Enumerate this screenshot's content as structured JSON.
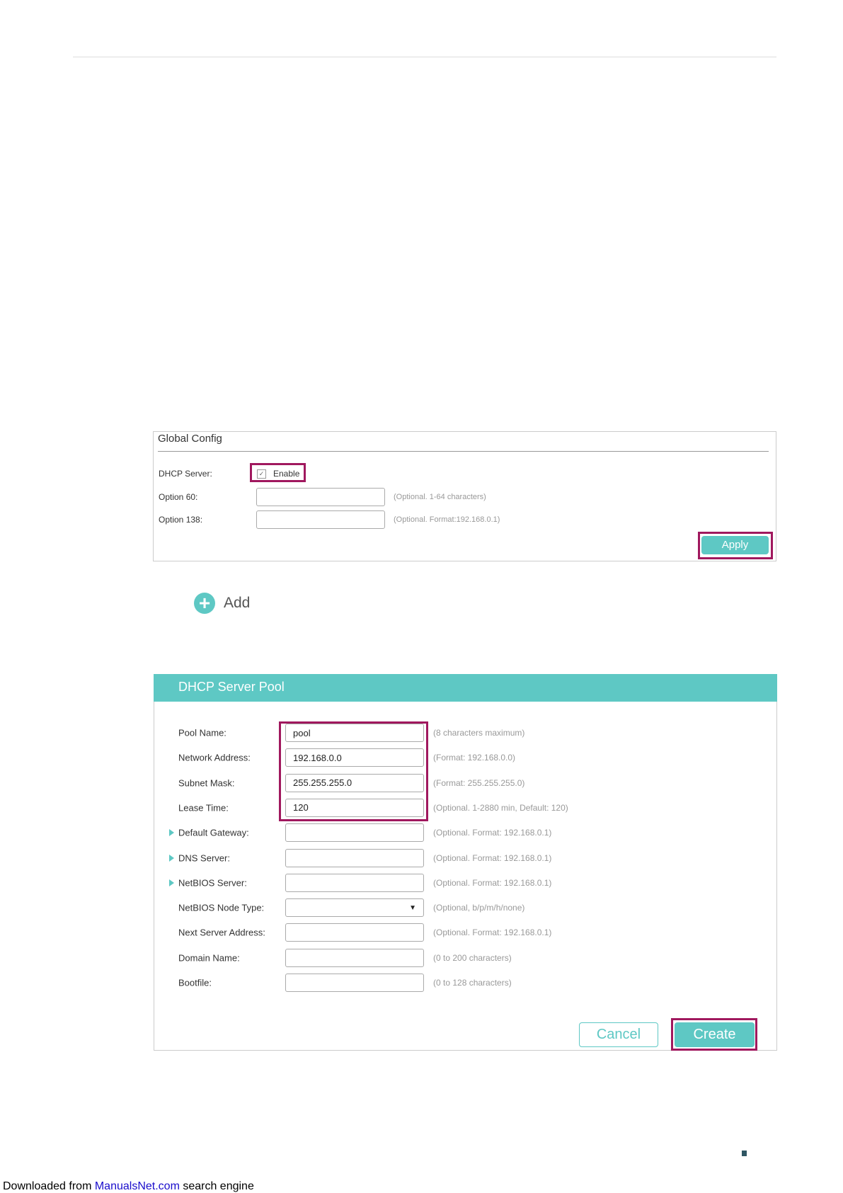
{
  "global_config": {
    "title": "Global Config",
    "dhcp_server_label": "DHCP Server:",
    "enable_label": "Enable",
    "enable_checked": true,
    "option60_label": "Option 60:",
    "option60_value": "",
    "option60_hint": "(Optional. 1-64 characters)",
    "option138_label": "Option 138:",
    "option138_value": "",
    "option138_hint": "(Optional. Format:192.168.0.1)",
    "apply_label": "Apply"
  },
  "add": {
    "label": "Add",
    "icon": "plus-circle-icon"
  },
  "pool": {
    "title": "DHCP Server Pool",
    "rows": [
      {
        "label": "Pool Name:",
        "value": "pool",
        "hint": "(8 characters maximum)",
        "expand": false,
        "type": "text"
      },
      {
        "label": "Network Address:",
        "value": "192.168.0.0",
        "hint": "(Format: 192.168.0.0)",
        "expand": false,
        "type": "text"
      },
      {
        "label": "Subnet Mask:",
        "value": "255.255.255.0",
        "hint": "(Format: 255.255.255.0)",
        "expand": false,
        "type": "text"
      },
      {
        "label": "Lease Time:",
        "value": "120",
        "hint": "(Optional. 1-2880 min, Default: 120)",
        "expand": false,
        "type": "text"
      },
      {
        "label": "Default Gateway:",
        "value": "",
        "hint": "(Optional. Format: 192.168.0.1)",
        "expand": true,
        "type": "text"
      },
      {
        "label": "DNS Server:",
        "value": "",
        "hint": "(Optional. Format: 192.168.0.1)",
        "expand": true,
        "type": "text"
      },
      {
        "label": "NetBIOS Server:",
        "value": "",
        "hint": "(Optional. Format: 192.168.0.1)",
        "expand": true,
        "type": "text"
      },
      {
        "label": "NetBIOS Node Type:",
        "value": "",
        "hint": "(Optional, b/p/m/h/none)",
        "expand": false,
        "type": "select"
      },
      {
        "label": "Next Server Address:",
        "value": "",
        "hint": "(Optional. Format: 192.168.0.1)",
        "expand": false,
        "type": "text"
      },
      {
        "label": "Domain Name:",
        "value": "",
        "hint": "(0 to 200 characters)",
        "expand": false,
        "type": "text"
      },
      {
        "label": "Bootfile:",
        "value": "",
        "hint": "(0 to 128 characters)",
        "expand": false,
        "type": "text"
      }
    ],
    "cancel_label": "Cancel",
    "create_label": "Create"
  },
  "footer": {
    "prefix": "Downloaded from ",
    "link": "ManualsNet.com",
    "suffix": " search engine"
  },
  "colors": {
    "accent": "#5ec8c4",
    "highlight": "#a0185e",
    "link": "#1a0dcc"
  }
}
